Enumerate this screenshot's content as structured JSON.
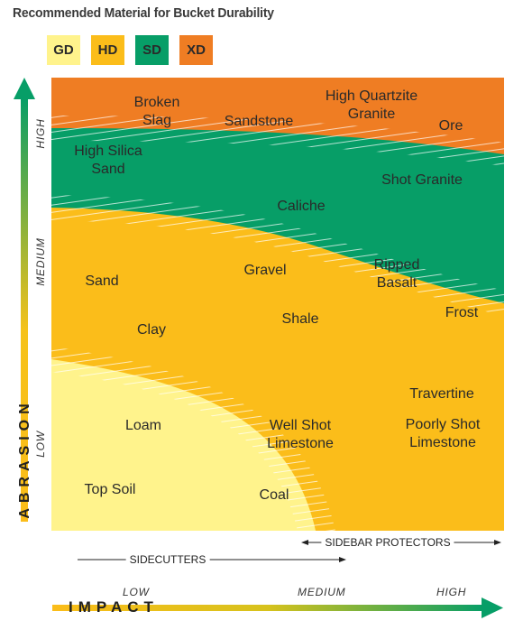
{
  "title": "Recommended Material for Bucket Durability",
  "legend": [
    {
      "code": "GD",
      "color": "#fff38c"
    },
    {
      "code": "HD",
      "color": "#fbbd1a"
    },
    {
      "code": "SD",
      "color": "#079e67"
    },
    {
      "code": "XD",
      "color": "#ef7d23"
    }
  ],
  "zones": {
    "xd": "#ef7d23",
    "sd": "#079e67",
    "hd": "#fbbd1a",
    "gd": "#fff38c"
  },
  "materials": {
    "broken_slag": "Broken\nSlag",
    "sandstone": "Sandstone",
    "high_quartzite_granite": "High Quartzite\nGranite",
    "ore": "Ore",
    "high_silica_sand": "High Silica\nSand",
    "shot_granite": "Shot Granite",
    "caliche": "Caliche",
    "sand": "Sand",
    "gravel": "Gravel",
    "ripped_basalt": "Ripped\nBasalt",
    "frost": "Frost",
    "shale": "Shale",
    "clay": "Clay",
    "travertine": "Travertine",
    "loam": "Loam",
    "well_shot_limestone": "Well Shot\nLimestone",
    "poorly_shot_limestone": "Poorly Shot\nLimestone",
    "top_soil": "Top Soil",
    "coal": "Coal"
  },
  "axes": {
    "abrasion_title": "ABRASION",
    "abrasion_ticks": {
      "high": "HIGH",
      "medium": "MEDIUM",
      "low": "LOW"
    },
    "impact_title": "IMPACT",
    "impact_ticks": {
      "low": "LOW",
      "medium": "MEDIUM",
      "high": "HIGH"
    }
  },
  "ranges": {
    "sidecutters": "SIDECUTTERS",
    "sidebar_protectors": "SIDEBAR PROTECTORS"
  }
}
